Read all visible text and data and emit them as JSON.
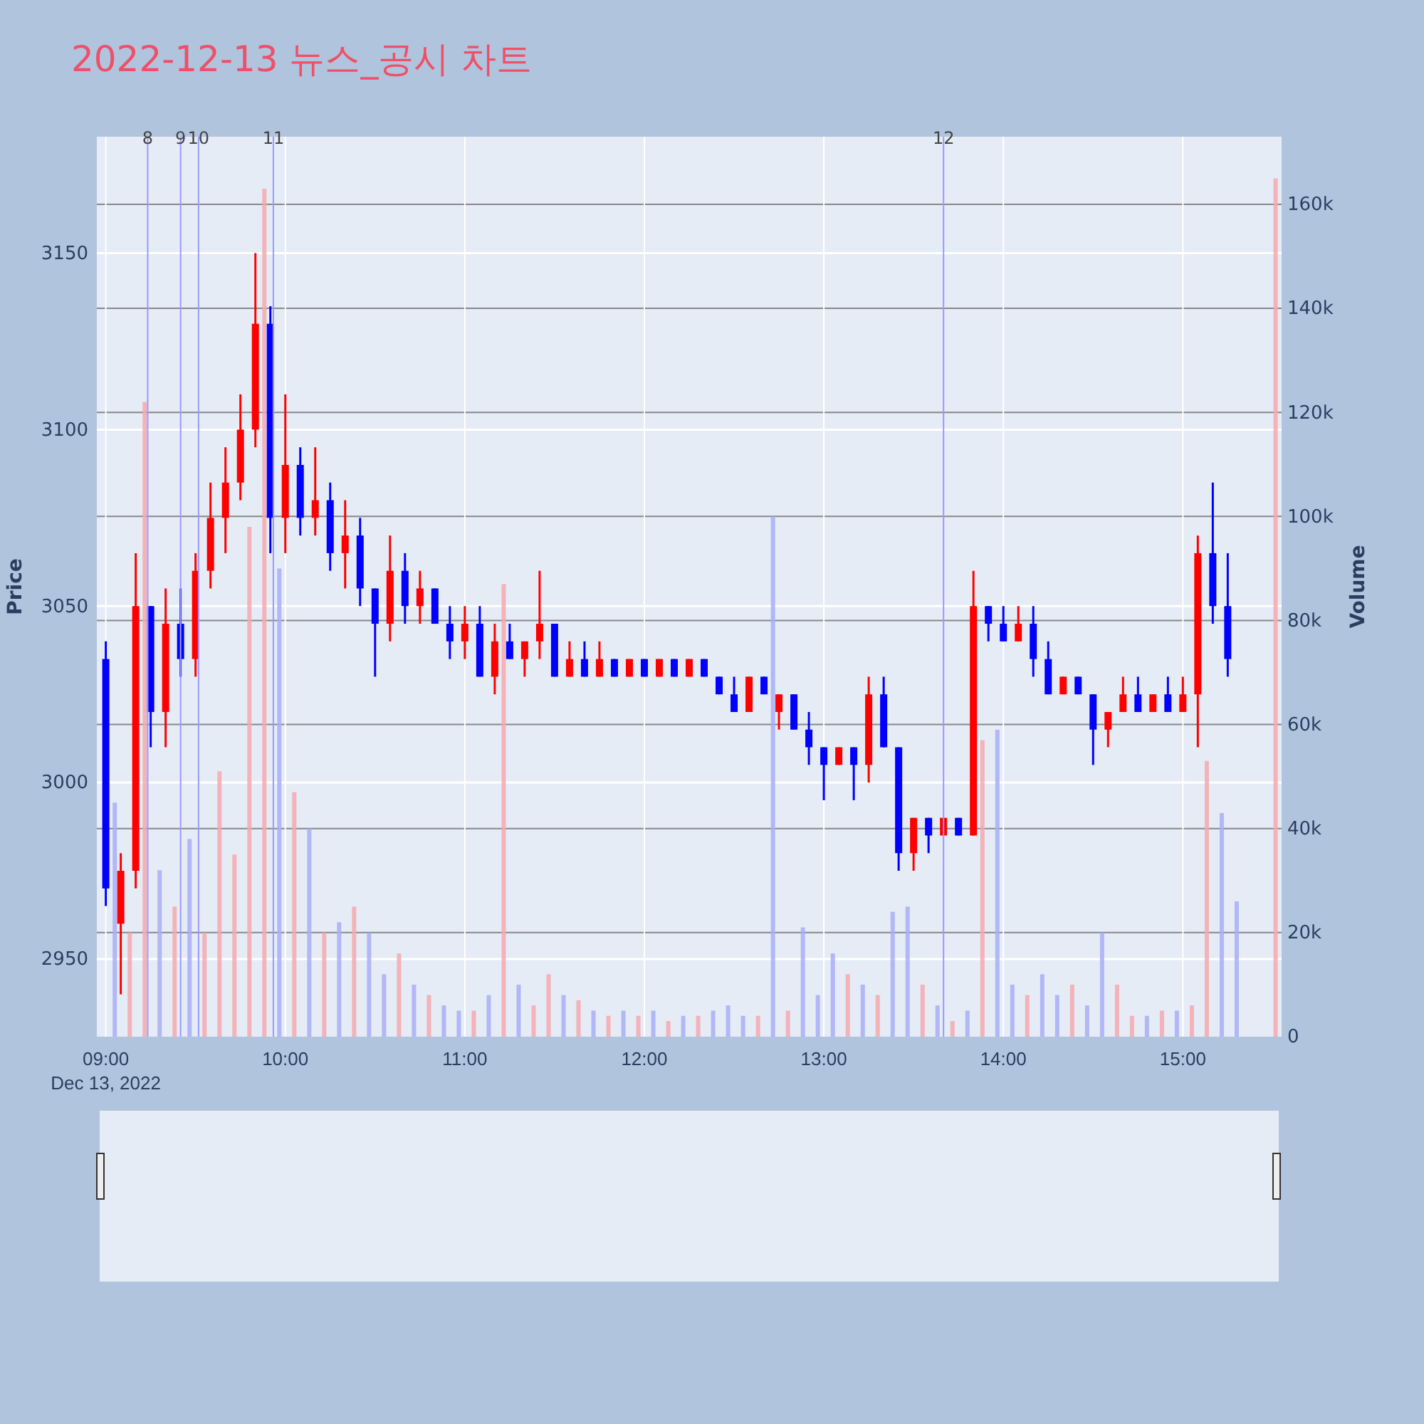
{
  "chart_data": {
    "type": "candlestick",
    "title": "2022-12-13 뉴스_공시 차트",
    "ylabel": "Price",
    "y2label": "Volume",
    "series": [
      {
        "type": "candlestick",
        "x": [
          "2022-12-13T09:00",
          "2022-12-13T09:05",
          "2022-12-13T09:10",
          "2022-12-13T09:15",
          "2022-12-13T09:20",
          "2022-12-13T09:25",
          "2022-12-13T09:30",
          "2022-12-13T09:35",
          "2022-12-13T09:40",
          "2022-12-13T09:45",
          "2022-12-13T09:50",
          "2022-12-13T09:55",
          "2022-12-13T10:00",
          "2022-12-13T10:05",
          "2022-12-13T10:10",
          "2022-12-13T10:15",
          "2022-12-13T10:20",
          "2022-12-13T10:25",
          "2022-12-13T10:30",
          "2022-12-13T10:35",
          "2022-12-13T10:40",
          "2022-12-13T10:45",
          "2022-12-13T10:50",
          "2022-12-13T10:55",
          "2022-12-13T11:00",
          "2022-12-13T11:05",
          "2022-12-13T11:10",
          "2022-12-13T11:15",
          "2022-12-13T11:20",
          "2022-12-13T11:25",
          "2022-12-13T11:30",
          "2022-12-13T11:35",
          "2022-12-13T11:40",
          "2022-12-13T11:45",
          "2022-12-13T11:50",
          "2022-12-13T11:55",
          "2022-12-13T12:00",
          "2022-12-13T12:05",
          "2022-12-13T12:10",
          "2022-12-13T12:15",
          "2022-12-13T12:20",
          "2022-12-13T12:25",
          "2022-12-13T12:30",
          "2022-12-13T12:35",
          "2022-12-13T12:40",
          "2022-12-13T12:45",
          "2022-12-13T12:50",
          "2022-12-13T12:55",
          "2022-12-13T13:00",
          "2022-12-13T13:05",
          "2022-12-13T13:10",
          "2022-12-13T13:15",
          "2022-12-13T13:20",
          "2022-12-13T13:25",
          "2022-12-13T13:30",
          "2022-12-13T13:35",
          "2022-12-13T13:40",
          "2022-12-13T13:45",
          "2022-12-13T13:50",
          "2022-12-13T13:55",
          "2022-12-13T14:00",
          "2022-12-13T14:05",
          "2022-12-13T14:10",
          "2022-12-13T14:15",
          "2022-12-13T14:20",
          "2022-12-13T14:25",
          "2022-12-13T14:30",
          "2022-12-13T14:35",
          "2022-12-13T14:40",
          "2022-12-13T14:45",
          "2022-12-13T14:50",
          "2022-12-13T14:55",
          "2022-12-13T15:00",
          "2022-12-13T15:05",
          "2022-12-13T15:10",
          "2022-12-13T15:15"
        ],
        "ohlc": [
          [
            3035,
            3040,
            2965,
            2970
          ],
          [
            2960,
            2980,
            2940,
            2975
          ],
          [
            2975,
            3065,
            2970,
            3050
          ],
          [
            3050,
            3050,
            3010,
            3020
          ],
          [
            3020,
            3055,
            3010,
            3045
          ],
          [
            3045,
            3055,
            3030,
            3035
          ],
          [
            3035,
            3065,
            3030,
            3060
          ],
          [
            3060,
            3085,
            3055,
            3075
          ],
          [
            3075,
            3095,
            3065,
            3085
          ],
          [
            3085,
            3110,
            3080,
            3100
          ],
          [
            3100,
            3150,
            3095,
            3130
          ],
          [
            3130,
            3135,
            3065,
            3075
          ],
          [
            3075,
            3110,
            3065,
            3090
          ],
          [
            3090,
            3095,
            3070,
            3075
          ],
          [
            3075,
            3095,
            3070,
            3080
          ],
          [
            3080,
            3085,
            3060,
            3065
          ],
          [
            3065,
            3080,
            3055,
            3070
          ],
          [
            3070,
            3075,
            3050,
            3055
          ],
          [
            3055,
            3055,
            3030,
            3045
          ],
          [
            3045,
            3070,
            3040,
            3060
          ],
          [
            3060,
            3065,
            3045,
            3050
          ],
          [
            3050,
            3060,
            3045,
            3055
          ],
          [
            3055,
            3055,
            3045,
            3045
          ],
          [
            3045,
            3050,
            3035,
            3040
          ],
          [
            3040,
            3050,
            3035,
            3045
          ],
          [
            3045,
            3050,
            3030,
            3030
          ],
          [
            3030,
            3045,
            3025,
            3040
          ],
          [
            3040,
            3045,
            3035,
            3035
          ],
          [
            3035,
            3040,
            3030,
            3040
          ],
          [
            3040,
            3060,
            3035,
            3045
          ],
          [
            3045,
            3045,
            3030,
            3030
          ],
          [
            3030,
            3040,
            3030,
            3035
          ],
          [
            3035,
            3040,
            3030,
            3030
          ],
          [
            3030,
            3040,
            3030,
            3035
          ],
          [
            3035,
            3035,
            3030,
            3030
          ],
          [
            3030,
            3035,
            3030,
            3035
          ],
          [
            3035,
            3035,
            3030,
            3030
          ],
          [
            3030,
            3035,
            3030,
            3035
          ],
          [
            3035,
            3035,
            3030,
            3030
          ],
          [
            3030,
            3035,
            3030,
            3035
          ],
          [
            3035,
            3035,
            3030,
            3030
          ],
          [
            3030,
            3030,
            3025,
            3025
          ],
          [
            3025,
            3030,
            3020,
            3020
          ],
          [
            3020,
            3030,
            3020,
            3030
          ],
          [
            3030,
            3030,
            3025,
            3025
          ],
          [
            3020,
            3025,
            3015,
            3025
          ],
          [
            3025,
            3025,
            3015,
            3015
          ],
          [
            3015,
            3020,
            3005,
            3010
          ],
          [
            3010,
            3010,
            2995,
            3005
          ],
          [
            3005,
            3010,
            3005,
            3010
          ],
          [
            3010,
            3010,
            2995,
            3005
          ],
          [
            3005,
            3030,
            3000,
            3025
          ],
          [
            3025,
            3030,
            3010,
            3010
          ],
          [
            3010,
            3010,
            2975,
            2980
          ],
          [
            2980,
            2990,
            2975,
            2990
          ],
          [
            2990,
            2990,
            2980,
            2985
          ],
          [
            2985,
            2990,
            2985,
            2990
          ],
          [
            2990,
            2990,
            2985,
            2985
          ],
          [
            2985,
            3060,
            2985,
            3050
          ],
          [
            3050,
            3050,
            3040,
            3045
          ],
          [
            3045,
            3050,
            3040,
            3040
          ],
          [
            3040,
            3050,
            3040,
            3045
          ],
          [
            3045,
            3050,
            3030,
            3035
          ],
          [
            3035,
            3040,
            3025,
            3025
          ],
          [
            3025,
            3030,
            3025,
            3030
          ],
          [
            3030,
            3030,
            3025,
            3025
          ],
          [
            3025,
            3025,
            3005,
            3015
          ],
          [
            3015,
            3020,
            3010,
            3020
          ],
          [
            3020,
            3030,
            3020,
            3025
          ],
          [
            3025,
            3030,
            3020,
            3020
          ],
          [
            3020,
            3025,
            3020,
            3025
          ],
          [
            3025,
            3030,
            3020,
            3020
          ],
          [
            3020,
            3030,
            3020,
            3025
          ],
          [
            3025,
            3070,
            3010,
            3065
          ],
          [
            3065,
            3085,
            3045,
            3050
          ],
          [
            3050,
            3065,
            3030,
            3035
          ]
        ],
        "colors": [
          "#0000ff",
          "#ff0000",
          "#ff0000",
          "#0000ff",
          "#ff0000",
          "#0000ff",
          "#ff0000",
          "#ff0000",
          "#ff0000",
          "#ff0000",
          "#ff0000",
          "#0000ff",
          "#ff0000",
          "#0000ff",
          "#ff0000",
          "#0000ff",
          "#ff0000",
          "#0000ff",
          "#0000ff",
          "#ff0000",
          "#0000ff",
          "#ff0000",
          "#0000ff",
          "#0000ff",
          "#ff0000",
          "#0000ff",
          "#ff0000",
          "#0000ff",
          "#ff0000",
          "#ff0000",
          "#0000ff",
          "#ff0000",
          "#0000ff",
          "#ff0000",
          "#0000ff",
          "#ff0000",
          "#0000ff",
          "#ff0000",
          "#0000ff",
          "#ff0000",
          "#0000ff",
          "#0000ff",
          "#0000ff",
          "#ff0000",
          "#0000ff",
          "#ff0000",
          "#0000ff",
          "#0000ff",
          "#0000ff",
          "#ff0000",
          "#0000ff",
          "#ff0000",
          "#0000ff",
          "#0000ff",
          "#ff0000",
          "#0000ff",
          "#ff0000",
          "#0000ff",
          "#ff0000",
          "#0000ff",
          "#0000ff",
          "#ff0000",
          "#0000ff",
          "#0000ff",
          "#ff0000",
          "#0000ff",
          "#0000ff",
          "#ff0000",
          "#ff0000",
          "#0000ff",
          "#ff0000",
          "#0000ff",
          "#ff0000",
          "#ff0000",
          "#0000ff",
          "#0000ff"
        ]
      },
      {
        "type": "bar",
        "axis": "y2",
        "x": [
          "2022-12-13T09:03",
          "2022-12-13T09:08",
          "2022-12-13T09:13",
          "2022-12-13T09:18",
          "2022-12-13T09:23",
          "2022-12-13T09:28",
          "2022-12-13T09:33",
          "2022-12-13T09:38",
          "2022-12-13T09:43",
          "2022-12-13T09:48",
          "2022-12-13T09:53",
          "2022-12-13T09:58",
          "2022-12-13T10:03",
          "2022-12-13T10:08",
          "2022-12-13T10:13",
          "2022-12-13T10:18",
          "2022-12-13T10:23",
          "2022-12-13T10:28",
          "2022-12-13T10:33",
          "2022-12-13T10:38",
          "2022-12-13T10:43",
          "2022-12-13T10:48",
          "2022-12-13T10:53",
          "2022-12-13T10:58",
          "2022-12-13T11:03",
          "2022-12-13T11:08",
          "2022-12-13T11:13",
          "2022-12-13T11:18",
          "2022-12-13T11:23",
          "2022-12-13T11:28",
          "2022-12-13T11:33",
          "2022-12-13T11:38",
          "2022-12-13T11:43",
          "2022-12-13T11:48",
          "2022-12-13T11:53",
          "2022-12-13T11:58",
          "2022-12-13T12:03",
          "2022-12-13T12:08",
          "2022-12-13T12:13",
          "2022-12-13T12:18",
          "2022-12-13T12:23",
          "2022-12-13T12:28",
          "2022-12-13T12:33",
          "2022-12-13T12:38",
          "2022-12-13T12:43",
          "2022-12-13T12:48",
          "2022-12-13T12:53",
          "2022-12-13T12:58",
          "2022-12-13T13:03",
          "2022-12-13T13:08",
          "2022-12-13T13:13",
          "2022-12-13T13:18",
          "2022-12-13T13:23",
          "2022-12-13T13:28",
          "2022-12-13T13:33",
          "2022-12-13T13:38",
          "2022-12-13T13:43",
          "2022-12-13T13:48",
          "2022-12-13T13:53",
          "2022-12-13T13:58",
          "2022-12-13T14:03",
          "2022-12-13T14:08",
          "2022-12-13T14:13",
          "2022-12-13T14:18",
          "2022-12-13T14:23",
          "2022-12-13T14:28",
          "2022-12-13T14:33",
          "2022-12-13T14:38",
          "2022-12-13T14:43",
          "2022-12-13T14:48",
          "2022-12-13T14:53",
          "2022-12-13T14:58",
          "2022-12-13T15:03",
          "2022-12-13T15:08",
          "2022-12-13T15:13",
          "2022-12-13T15:18",
          "2022-12-13T15:31"
        ],
        "values": [
          45000,
          20000,
          122000,
          32000,
          25000,
          38000,
          20000,
          51000,
          35000,
          98000,
          163000,
          90000,
          47000,
          40000,
          20000,
          22000,
          25000,
          20000,
          12000,
          16000,
          10000,
          8000,
          6000,
          5000,
          5000,
          8000,
          87000,
          10000,
          6000,
          12000,
          8000,
          7000,
          5000,
          4000,
          5000,
          4000,
          5000,
          3000,
          4000,
          4000,
          5000,
          6000,
          4000,
          4000,
          100000,
          5000,
          21000,
          8000,
          16000,
          12000,
          10000,
          8000,
          24000,
          25000,
          10000,
          6000,
          3000,
          5000,
          57000,
          59000,
          10000,
          8000,
          12000,
          8000,
          10000,
          6000,
          20000,
          10000,
          4000,
          4000,
          5000,
          5000,
          6000,
          53000,
          43000,
          26000,
          165000
        ],
        "colors": [
          "#a8aef7",
          "#f7a8ae",
          "#f7a8ae",
          "#a8aef7",
          "#f7a8ae",
          "#a8aef7",
          "#f7a8ae",
          "#f7a8ae",
          "#f7a8ae",
          "#f7a8ae",
          "#f7a8ae",
          "#a8aef7",
          "#f7a8ae",
          "#a8aef7",
          "#f7a8ae",
          "#a8aef7",
          "#f7a8ae",
          "#a8aef7",
          "#a8aef7",
          "#f7a8ae",
          "#a8aef7",
          "#f7a8ae",
          "#a8aef7",
          "#a8aef7",
          "#f7a8ae",
          "#a8aef7",
          "#f7a8ae",
          "#a8aef7",
          "#f7a8ae",
          "#f7a8ae",
          "#a8aef7",
          "#f7a8ae",
          "#a8aef7",
          "#f7a8ae",
          "#a8aef7",
          "#f7a8ae",
          "#a8aef7",
          "#f7a8ae",
          "#a8aef7",
          "#f7a8ae",
          "#a8aef7",
          "#a8aef7",
          "#a8aef7",
          "#f7a8ae",
          "#a8aef7",
          "#f7a8ae",
          "#a8aef7",
          "#a8aef7",
          "#a8aef7",
          "#f7a8ae",
          "#a8aef7",
          "#f7a8ae",
          "#a8aef7",
          "#a8aef7",
          "#f7a8ae",
          "#a8aef7",
          "#f7a8ae",
          "#a8aef7",
          "#f7a8ae",
          "#a8aef7",
          "#a8aef7",
          "#f7a8ae",
          "#a8aef7",
          "#a8aef7",
          "#f7a8ae",
          "#a8aef7",
          "#a8aef7",
          "#f7a8ae",
          "#f7a8ae",
          "#a8aef7",
          "#f7a8ae",
          "#a8aef7",
          "#f7a8ae",
          "#f7a8ae",
          "#a8aef7",
          "#a8aef7",
          "#f7a8ae"
        ]
      }
    ],
    "xlim": [
      "2022-12-13T08:57",
      "2022-12-13T15:33"
    ],
    "xticks": [
      {
        "value": "2022-12-13T09:00",
        "label": "09:00\nDec 13, 2022"
      },
      {
        "value": "2022-12-13T10:00",
        "label": "10:00"
      },
      {
        "value": "2022-12-13T11:00",
        "label": "11:00"
      },
      {
        "value": "2022-12-13T12:00",
        "label": "12:00"
      },
      {
        "value": "2022-12-13T13:00",
        "label": "13:00"
      },
      {
        "value": "2022-12-13T14:00",
        "label": "14:00"
      },
      {
        "value": "2022-12-13T15:00",
        "label": "15:00"
      }
    ],
    "ylim": [
      2928,
      3183
    ],
    "yticks": [
      2950,
      3000,
      3050,
      3100,
      3150
    ],
    "y2lim": [
      0,
      173000
    ],
    "y2ticks": [
      0,
      {
        "value": 20000,
        "label": "20k"
      },
      {
        "value": 40000,
        "label": "40k"
      },
      {
        "value": 60000,
        "label": "60k"
      },
      {
        "value": 80000,
        "label": "80k"
      },
      {
        "value": 100000,
        "label": "100k"
      },
      {
        "value": 120000,
        "label": "120k"
      },
      {
        "value": 140000,
        "label": "140k"
      },
      {
        "value": 160000,
        "label": "160k"
      }
    ],
    "ref_lines": [
      {
        "axis": "x",
        "value": "2022-12-13T09:14",
        "label": "8",
        "color": "#9999ff"
      },
      {
        "axis": "x",
        "value": "2022-12-13T09:25",
        "label": "9",
        "color": "#9999ff"
      },
      {
        "axis": "x",
        "value": "2022-12-13T09:31",
        "label": "10",
        "color": "#9999ff"
      },
      {
        "axis": "x",
        "value": "2022-12-13T09:56",
        "label": "11",
        "color": "#9999ff"
      },
      {
        "axis": "x",
        "value": "2022-12-13T13:40",
        "label": "12",
        "color": "#9999ff"
      }
    ],
    "grid": true
  }
}
